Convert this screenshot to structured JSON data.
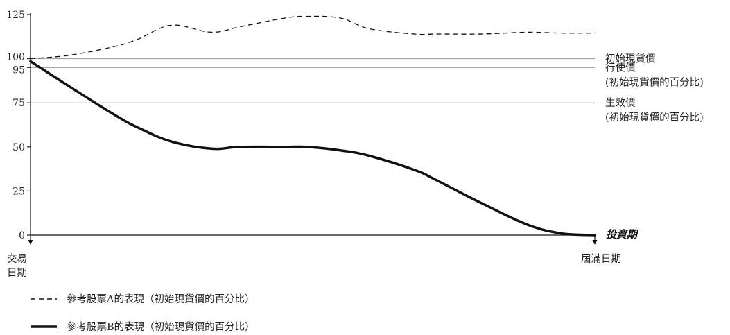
{
  "chart_data": {
    "type": "line",
    "xlabel": "投資期",
    "x_start_label": [
      "交易",
      "日期"
    ],
    "x_end_label": "屆滿日期",
    "ylim": [
      0,
      125
    ],
    "y_ticks": [
      "0",
      "25",
      "50",
      "75",
      "95",
      "100",
      "125"
    ],
    "x": [
      0,
      0.07,
      0.15,
      0.19,
      0.25,
      0.32,
      0.37,
      0.45,
      0.49,
      0.55,
      0.6,
      0.68,
      0.72,
      0.8,
      0.88,
      0.94,
      1.0
    ],
    "series": [
      {
        "name": "參考股票A的表現（初始現貨價的百分比）",
        "style": "dashed",
        "values": [
          100,
          102,
          107,
          111,
          119,
          115,
          118,
          123,
          124,
          123,
          117,
          114,
          114,
          114,
          115,
          114.5,
          114.5
        ]
      },
      {
        "name": "參考股票B的表現（初始現貨價的百分比）",
        "style": "solid",
        "values": [
          98.5,
          84,
          68,
          61,
          53,
          49,
          50,
          50,
          50,
          48,
          45,
          37,
          31,
          18,
          6,
          1,
          0
        ]
      }
    ],
    "reference_lines": [
      {
        "value": 100,
        "label": [
          "初始現貨價"
        ]
      },
      {
        "value": 95,
        "label": [
          "行使價",
          "(初始現貨價的百分比)"
        ]
      },
      {
        "value": 75,
        "label": [
          "生效價",
          "(初始現貨價的百分比)"
        ]
      }
    ],
    "grid": false,
    "legend_position": "bottom-left",
    "colors": {
      "line": "#111111",
      "reference": "#9a9a9a",
      "axis": "#111111"
    }
  }
}
